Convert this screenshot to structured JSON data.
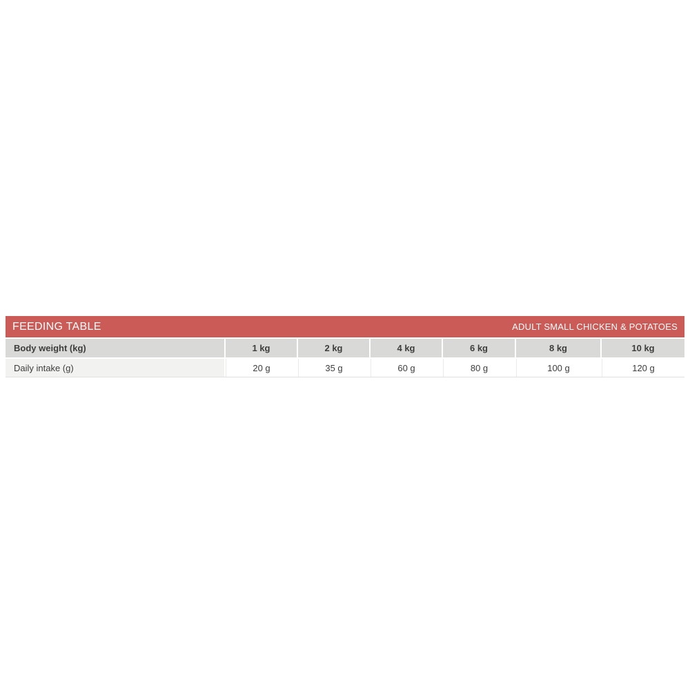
{
  "page": {
    "background": "#ffffff"
  },
  "feeding_table": {
    "title": "FEEDING TABLE",
    "variant": "ADULT SMALL CHICKEN & POTATOES",
    "colors": {
      "accent": "#ca5b57",
      "header_text": "#ffffff",
      "weight_row_bg": "#d9d9d8",
      "label_cell_bg": "#f2f2f1",
      "value_cell_bg": "#ffffff",
      "body_text": "#3d3d3d",
      "divider": "#e0e0e0"
    },
    "rows": [
      {
        "label": "Body weight (kg)",
        "values": [
          "1 kg",
          "2 kg",
          "4 kg",
          "6 kg",
          "8 kg",
          "10 kg"
        ]
      },
      {
        "label": "Daily intake (g)",
        "values": [
          "20 g",
          "35 g",
          "60 g",
          "80 g",
          "100 g",
          "120 g"
        ]
      }
    ]
  },
  "chart_data": {
    "type": "table",
    "title": "FEEDING TABLE",
    "subtitle": "ADULT SMALL CHICKEN & POTATOES",
    "columns": [
      "Body weight (kg)",
      "1 kg",
      "2 kg",
      "4 kg",
      "6 kg",
      "8 kg",
      "10 kg"
    ],
    "rows": [
      [
        "Daily intake (g)",
        "20 g",
        "35 g",
        "60 g",
        "80 g",
        "100 g",
        "120 g"
      ]
    ]
  }
}
